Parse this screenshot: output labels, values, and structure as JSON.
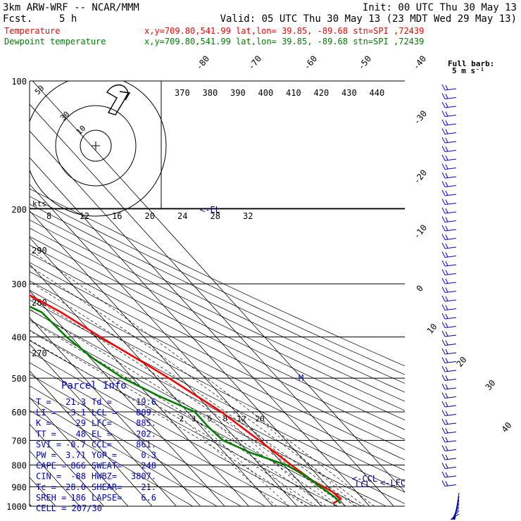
{
  "header": {
    "model": "3km ARW-WRF -- NCAR/MMM",
    "init": "Init: 00 UTC Thu 30 May 13",
    "fcst_label": "Fcst.",
    "fcst_value": "5 h",
    "valid": "Valid: 05 UTC Thu 30 May 13 (23 MDT Wed 29 May 13)",
    "temp_label": "Temperature",
    "temp_loc": "x,y=709.80,541.99   lat,lon= 39.85, -89.68  stn=SPI ,72439",
    "dew_label": "Dewpoint temperature",
    "dew_loc": "x,y=709.80,541.99   lat,lon= 39.85, -89.68  stn=SPI ,72439",
    "barb_title": "Full barb:",
    "barb_unit": "5 m s⁻¹"
  },
  "colors": {
    "temperature": "#ff0000",
    "dewpoint": "#008000",
    "annotation": "#00008b",
    "info": "#0000cd"
  },
  "chart_data": {
    "type": "line",
    "pressure_ticks": [
      "100",
      "200",
      "300",
      "400",
      "500",
      "600",
      "700",
      "800",
      "900",
      "1000"
    ],
    "isotherm_labels": [
      "-80",
      "-70",
      "-60",
      "-50",
      "-40",
      "-30",
      "-20",
      "-10",
      "0",
      "10",
      "20",
      "30",
      "40"
    ],
    "theta_labels": [
      "370",
      "380",
      "390",
      "400",
      "410",
      "420",
      "430",
      "440"
    ],
    "dry_adiabat_labels": [
      "290",
      "280",
      "270"
    ],
    "mixing_ratio_labels": [
      "2",
      "3",
      "5",
      "8",
      "12",
      "20"
    ],
    "hodograph": {
      "speed_unit": "kts",
      "ring_labels": [
        "10",
        "30",
        "50"
      ],
      "axis_ticks": [
        "8",
        "12",
        "16",
        "20",
        "24",
        "28",
        "32"
      ]
    },
    "level_markers": {
      "el": "<-EL",
      "m": "M",
      "ccl": "<-CCL",
      "lcl": "LCL",
      "lfc": "<-LFC"
    },
    "series": [
      {
        "name": "Temperature",
        "points": [
          {
            "p": 100,
            "t": -73
          },
          {
            "p": 120,
            "t": -66
          },
          {
            "p": 150,
            "t": -63
          },
          {
            "p": 175,
            "t": -62
          },
          {
            "p": 190,
            "t": -61
          },
          {
            "p": 200,
            "t": -57
          },
          {
            "p": 250,
            "t": -46
          },
          {
            "p": 300,
            "t": -36
          },
          {
            "p": 350,
            "t": -25
          },
          {
            "p": 400,
            "t": -18
          },
          {
            "p": 450,
            "t": -11
          },
          {
            "p": 500,
            "t": -5
          },
          {
            "p": 600,
            "t": 4
          },
          {
            "p": 700,
            "t": 9
          },
          {
            "p": 800,
            "t": 13
          },
          {
            "p": 870,
            "t": 16
          },
          {
            "p": 925,
            "t": 20
          },
          {
            "p": 960,
            "t": 21
          },
          {
            "p": 985,
            "t": 16
          }
        ]
      },
      {
        "name": "Dewpoint temperature",
        "points": [
          {
            "p": 100,
            "t": -90
          },
          {
            "p": 120,
            "t": -92
          },
          {
            "p": 150,
            "t": -91
          },
          {
            "p": 180,
            "t": -82
          },
          {
            "p": 200,
            "t": -74
          },
          {
            "p": 250,
            "t": -58
          },
          {
            "p": 300,
            "t": -47
          },
          {
            "p": 350,
            "t": -33
          },
          {
            "p": 400,
            "t": -32
          },
          {
            "p": 450,
            "t": -29
          },
          {
            "p": 500,
            "t": -24
          },
          {
            "p": 550,
            "t": -16
          },
          {
            "p": 600,
            "t": -7
          },
          {
            "p": 650,
            "t": -7
          },
          {
            "p": 700,
            "t": -6
          },
          {
            "p": 750,
            "t": 1
          },
          {
            "p": 800,
            "t": 11
          },
          {
            "p": 850,
            "t": 15
          },
          {
            "p": 900,
            "t": 17
          },
          {
            "p": 950,
            "t": 19
          },
          {
            "p": 985,
            "t": 19
          }
        ]
      }
    ]
  },
  "parcel_info": {
    "title": "Parcel Info",
    "rows": [
      [
        "T  =",
        "21.3",
        "Td =",
        "19.6"
      ],
      [
        "LI =",
        "-3.1",
        "LCL =",
        "889."
      ],
      [
        "K  =",
        "29",
        "LFC=",
        "885."
      ],
      [
        "TT =",
        "48",
        "EL =",
        "202."
      ],
      [
        "SVI =",
        "-0.7",
        "CCL=",
        "861."
      ],
      [
        "PW =",
        "3.71",
        "YGP =",
        "0.3"
      ],
      [
        "CAPE =",
        "866",
        "SWEAT=",
        "248"
      ],
      [
        "CIN =",
        "-88",
        "HWBZ=",
        "3807."
      ],
      [
        "Tc =",
        "28.0",
        "SHEAR=",
        "21."
      ],
      [
        "SREH =",
        "186",
        "LAPSE=",
        "6.6"
      ]
    ],
    "cell": "CELL = 207/30"
  }
}
